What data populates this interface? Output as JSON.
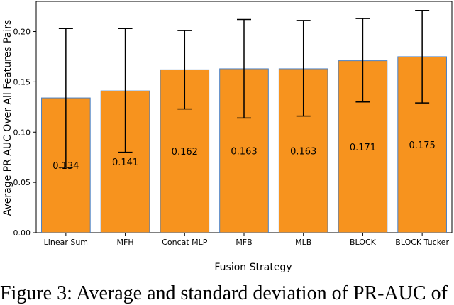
{
  "chart_data": {
    "type": "bar",
    "categories": [
      "Linear Sum",
      "MFH",
      "Concat MLP",
      "MFB",
      "MLB",
      "BLOCK",
      "BLOCK Tucker"
    ],
    "values": [
      0.134,
      0.141,
      0.162,
      0.163,
      0.163,
      0.171,
      0.175
    ],
    "data_labels": [
      "0.134",
      "0.141",
      "0.162",
      "0.163",
      "0.163",
      "0.171",
      "0.175"
    ],
    "error_bars": [
      {
        "low": 0.065,
        "high": 0.203
      },
      {
        "low": 0.08,
        "high": 0.203
      },
      {
        "low": 0.123,
        "high": 0.201
      },
      {
        "low": 0.114,
        "high": 0.212
      },
      {
        "low": 0.116,
        "high": 0.211
      },
      {
        "low": 0.13,
        "high": 0.213
      },
      {
        "low": 0.129,
        "high": 0.221
      }
    ],
    "xlabel": "Fusion Strategy",
    "ylabel": "Average PR AUC Over All Features Pairs",
    "ylim": [
      0,
      0.23
    ],
    "yticks": [
      "0.00",
      "0.05",
      "0.10",
      "0.15",
      "0.20"
    ],
    "grid": false,
    "bar_color": "#f7931e",
    "bar_edge_color": "#4a7fc1",
    "error_color": "#000000"
  },
  "caption": "Figure 3: Average and standard deviation of PR-AUC of"
}
